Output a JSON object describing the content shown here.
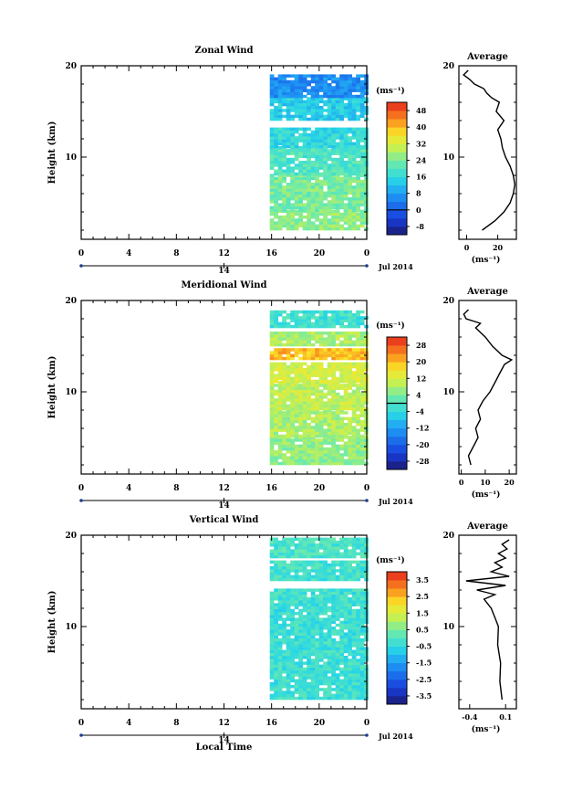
{
  "figure": {
    "date_label": "Jul 2014",
    "day_label": "14",
    "bottom_xlabel": "Local Time",
    "time_ticks": [
      "0",
      "4",
      "8",
      "12",
      "16",
      "20",
      "0"
    ],
    "height_ticks": [
      "10",
      "20"
    ],
    "ylabel": "Height (km)",
    "unit_label": "(ms⁻¹)",
    "profile_title": "Average",
    "profile_xunit": "(ms⁻¹)"
  },
  "chart_data": [
    {
      "type": "heatmap",
      "title": "Zonal Wind",
      "ylabel": "Height (km)",
      "xlim": [
        0,
        24
      ],
      "ylim": [
        1,
        20
      ],
      "data_start_hour": 16,
      "colorbar": {
        "ticks": [
          48,
          40,
          32,
          24,
          16,
          8,
          0,
          -8
        ],
        "range": [
          -12,
          52
        ],
        "zero_line": 0
      },
      "bands": [
        {
          "height_km": [
            2,
            4
          ],
          "value": 26
        },
        {
          "height_km": [
            4,
            8
          ],
          "value": 24
        },
        {
          "height_km": [
            8,
            11
          ],
          "value": 20
        },
        {
          "height_km": [
            11,
            13
          ],
          "value": 16
        },
        {
          "height_km": [
            14,
            16.5
          ],
          "value": 14
        },
        {
          "height_km": [
            16.5,
            18.8
          ],
          "value": 6
        }
      ],
      "profile": {
        "xticks": [
          0,
          20
        ],
        "xlim": [
          -5,
          32
        ],
        "heights": [
          2,
          3,
          4,
          5,
          6,
          7,
          8,
          9,
          10,
          11,
          12,
          13,
          14,
          15,
          16,
          16.5,
          17,
          17.5,
          18,
          18.5,
          19,
          19.5
        ],
        "values": [
          10,
          18,
          24,
          28,
          30,
          31,
          30,
          28,
          25,
          23,
          22,
          20,
          24,
          19,
          21,
          16,
          13,
          11,
          5,
          2,
          -2,
          1
        ]
      }
    },
    {
      "type": "heatmap",
      "title": "Meridional Wind",
      "ylabel": "Height (km)",
      "xlim": [
        0,
        24
      ],
      "ylim": [
        1,
        20
      ],
      "data_start_hour": 16,
      "colorbar": {
        "ticks": [
          28,
          20,
          12,
          4,
          -4,
          -12,
          -20,
          -28
        ],
        "range": [
          -32,
          32
        ],
        "zero_line": 0
      },
      "bands": [
        {
          "height_km": [
            2,
            5
          ],
          "value": 6
        },
        {
          "height_km": [
            5,
            8
          ],
          "value": 8
        },
        {
          "height_km": [
            8,
            11
          ],
          "value": 10
        },
        {
          "height_km": [
            11,
            13
          ],
          "value": 12
        },
        {
          "height_km": [
            13.5,
            14.5
          ],
          "value": 20
        },
        {
          "height_km": [
            15,
            16.5
          ],
          "value": 8
        },
        {
          "height_km": [
            17,
            18.8
          ],
          "value": -2
        }
      ],
      "profile": {
        "xticks": [
          0,
          10,
          20
        ],
        "xlim": [
          -1,
          23
        ],
        "heights": [
          2,
          3,
          4,
          5,
          6,
          7,
          8,
          9,
          10,
          11,
          12,
          13,
          13.5,
          14,
          15,
          16,
          17,
          17.5,
          18,
          18.5,
          19
        ],
        "values": [
          4,
          3,
          5,
          7,
          6,
          8,
          7,
          9,
          12,
          14,
          16,
          18,
          21,
          17,
          13,
          10,
          6,
          8,
          2,
          1,
          3
        ]
      }
    },
    {
      "type": "heatmap",
      "title": "Vertical Wind",
      "ylabel": "Height (km)",
      "xlim": [
        0,
        24
      ],
      "ylim": [
        1,
        20
      ],
      "data_start_hour": 16,
      "colorbar": {
        "ticks": [
          3.5,
          2.5,
          1.5,
          0.5,
          -0.5,
          -1.5,
          -2.5,
          -3.5
        ],
        "range": [
          -4,
          4
        ],
        "zero_line": null
      },
      "bands": [
        {
          "height_km": [
            2,
            14
          ],
          "value": -0.3
        },
        {
          "height_km": [
            15,
            17
          ],
          "value": -0.2
        },
        {
          "height_km": [
            17.5,
            19.5
          ],
          "value": -0.1
        }
      ],
      "profile": {
        "xticks": [
          -0.4,
          0.1
        ],
        "xlim": [
          -0.55,
          0.25
        ],
        "heights": [
          2,
          4,
          6,
          8,
          10,
          11,
          12,
          13,
          13.5,
          14,
          14.5,
          15,
          15.5,
          16,
          16.5,
          17,
          17.5,
          18,
          18.5,
          19,
          19.5
        ],
        "values": [
          0.05,
          0.02,
          0.03,
          -0.01,
          0.0,
          -0.05,
          -0.1,
          -0.2,
          -0.05,
          -0.3,
          0.1,
          -0.45,
          0.15,
          -0.1,
          0.05,
          -0.05,
          0.1,
          0.0,
          0.12,
          0.05,
          0.15
        ]
      }
    }
  ]
}
